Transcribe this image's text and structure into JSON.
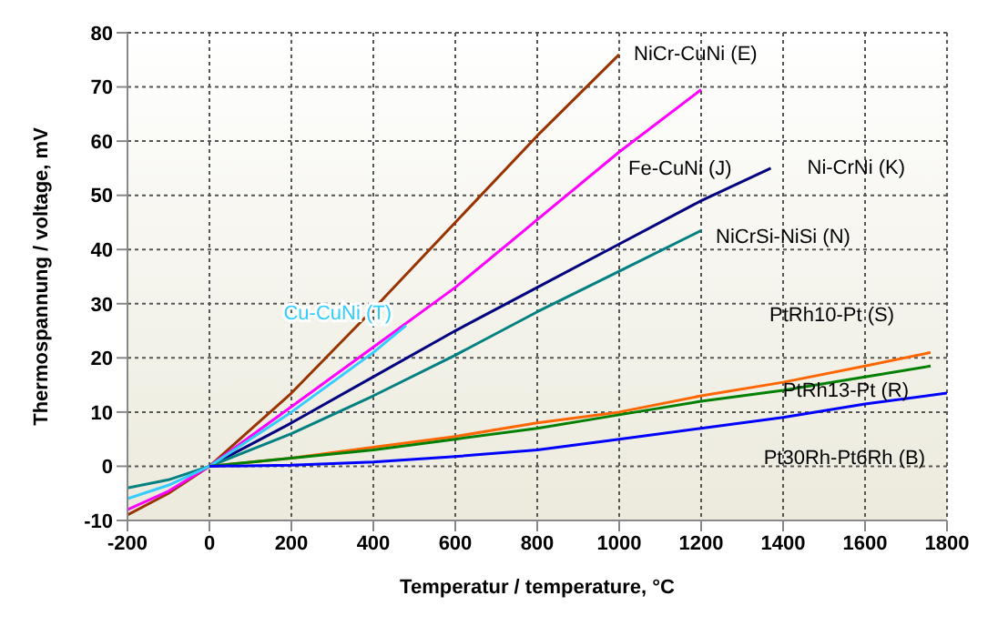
{
  "chart_data": {
    "type": "line",
    "xlabel": "Temperatur / temperature, °C",
    "ylabel": "Thermospannung / voltage, mV",
    "xlim": [
      -200,
      1800
    ],
    "xticks": [
      -200,
      0,
      200,
      400,
      600,
      800,
      1000,
      1200,
      1400,
      1600,
      1800
    ],
    "ylim": [
      -10,
      80
    ],
    "yticks": [
      -10,
      0,
      10,
      20,
      30,
      40,
      50,
      60,
      70,
      80
    ],
    "grid": true,
    "legend": false,
    "marker": "none",
    "line_style": "solid",
    "series": [
      {
        "name": "NiCr-CuNi (E)",
        "color": "#993300",
        "x": [
          -200,
          -100,
          0,
          200,
          400,
          600,
          800,
          1000
        ],
        "values": [
          -9,
          -5,
          0,
          13.5,
          29,
          45,
          61,
          76
        ]
      },
      {
        "name": "Fe-CuNi (J)",
        "color": "#ff00ff",
        "x": [
          -200,
          -100,
          0,
          200,
          400,
          600,
          800,
          1000,
          1200
        ],
        "values": [
          -8,
          -4.6,
          0,
          11,
          22,
          33,
          45.5,
          58,
          69.5
        ]
      },
      {
        "name": "Ni-CrNi (K)",
        "color": "#000080",
        "x": [
          0,
          200,
          400,
          600,
          800,
          1000,
          1200,
          1370
        ],
        "values": [
          0,
          8,
          16.5,
          25,
          33,
          41,
          49,
          55
        ]
      },
      {
        "name": "NiCrSi-NiSi (N)",
        "color": "#008080",
        "x": [
          -200,
          -100,
          0,
          200,
          400,
          600,
          800,
          1000,
          1200
        ],
        "values": [
          -4,
          -2.5,
          0,
          6,
          13,
          20.5,
          28.5,
          36,
          43.5
        ]
      },
      {
        "name": "Cu-CuNi (T)",
        "color": "#33ccff",
        "x": [
          -200,
          -100,
          0,
          200,
          400,
          480
        ],
        "values": [
          -6,
          -3.5,
          0,
          10,
          21,
          26
        ]
      },
      {
        "name": "PtRh10-Pt (S)",
        "color": "#ff6600",
        "x": [
          0,
          200,
          400,
          600,
          800,
          1000,
          1200,
          1400,
          1600,
          1760
        ],
        "values": [
          0,
          1.5,
          3.5,
          5.5,
          8,
          10,
          13,
          15.5,
          18.5,
          21
        ]
      },
      {
        "name": "PtRh13-Pt (R)",
        "color": "#008000",
        "x": [
          0,
          200,
          400,
          600,
          800,
          1000,
          1200,
          1400,
          1600,
          1760
        ],
        "values": [
          0,
          1.5,
          3,
          5,
          7,
          9.5,
          12,
          14,
          16.5,
          18.5
        ]
      },
      {
        "name": "Pt30Rh-Pt6Rh (B)",
        "color": "#0000ff",
        "x": [
          0,
          200,
          400,
          600,
          800,
          1000,
          1200,
          1400,
          1600,
          1800
        ],
        "values": [
          0,
          0.2,
          0.8,
          1.8,
          3,
          5,
          7,
          9,
          11.5,
          13.5
        ]
      }
    ]
  }
}
